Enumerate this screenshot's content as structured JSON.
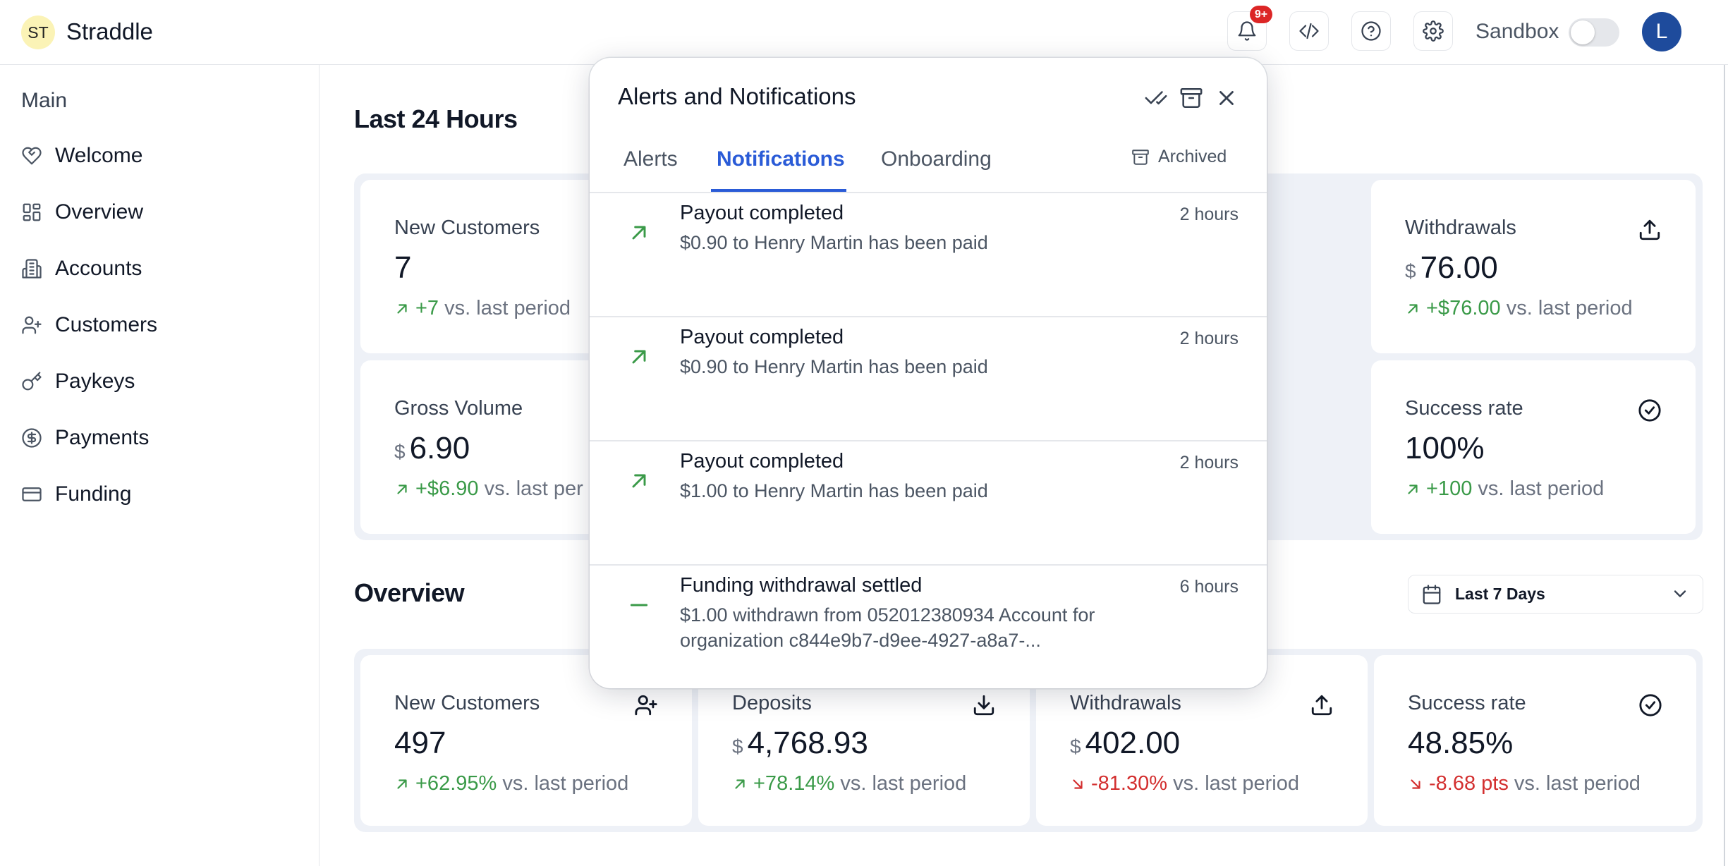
{
  "header": {
    "logo_initials": "ST",
    "brand": "Straddle",
    "notification_badge": "9+",
    "sandbox_label": "Sandbox",
    "sandbox_enabled": false,
    "avatar_initial": "L"
  },
  "sidebar": {
    "heading": "Main",
    "items": [
      {
        "label": "Welcome",
        "icon": "heart-icon"
      },
      {
        "label": "Overview",
        "icon": "dashboard-icon"
      },
      {
        "label": "Accounts",
        "icon": "building-icon"
      },
      {
        "label": "Customers",
        "icon": "user-plus-icon"
      },
      {
        "label": "Paykeys",
        "icon": "key-icon"
      },
      {
        "label": "Payments",
        "icon": "dollar-circle-icon"
      },
      {
        "label": "Funding",
        "icon": "credit-card-icon"
      }
    ]
  },
  "last24": {
    "title": "Last 24 Hours",
    "new_customers": {
      "label": "New Customers",
      "value": "7",
      "delta": "+7",
      "suffix": "vs. last period"
    },
    "withdrawals": {
      "label": "Withdrawals",
      "currency": "$",
      "value": "76.00",
      "delta": "+$76.00",
      "suffix": "vs. last period"
    },
    "gross_volume": {
      "label": "Gross Volume",
      "currency": "$",
      "value": "6.90",
      "delta": "+$6.90",
      "suffix": "vs. last per"
    },
    "success_rate": {
      "label": "Success rate",
      "value": "100%",
      "delta": "+100",
      "suffix": "vs. last period"
    }
  },
  "overview": {
    "title": "Overview",
    "date_range": "Last 7 Days",
    "new_customers": {
      "label": "New Customers",
      "value": "497",
      "delta": "+62.95%",
      "suffix": "vs. last period"
    },
    "deposits": {
      "label": "Deposits",
      "currency": "$",
      "value": "4,768.93",
      "delta": "+78.14%",
      "suffix": "vs. last period"
    },
    "withdrawals": {
      "label": "Withdrawals",
      "currency": "$",
      "value": "402.00",
      "delta": "-81.30%",
      "suffix": "vs. last period"
    },
    "success_rate": {
      "label": "Success rate",
      "value": "48.85%",
      "delta": "-8.68 pts",
      "suffix": "vs. last period"
    }
  },
  "popover": {
    "title": "Alerts and Notifications",
    "tabs": [
      "Alerts",
      "Notifications",
      "Onboarding"
    ],
    "active_tab": "Notifications",
    "archived_label": "Archived",
    "notifications": [
      {
        "title": "Payout completed",
        "body": "$0.90 to Henry Martin has been paid",
        "time": "2 hours",
        "icon": "arrow-up-right-icon"
      },
      {
        "title": "Payout completed",
        "body": "$0.90 to Henry Martin has been paid",
        "time": "2 hours",
        "icon": "arrow-up-right-icon"
      },
      {
        "title": "Payout completed",
        "body": "$1.00 to Henry Martin has been paid",
        "time": "2 hours",
        "icon": "arrow-up-right-icon"
      },
      {
        "title": "Funding withdrawal settled",
        "body": "$1.00 withdrawn from 052012380934 Account for organization c844e9b7-d9ee-4927-a8a7-...",
        "time": "6 hours",
        "icon": "minus-icon"
      }
    ]
  },
  "colors": {
    "accent": "#2a5bd7",
    "positive": "#3a9a48",
    "negative": "#d32f2f",
    "badge": "#dc2626",
    "avatar": "#1e4b9c",
    "panel": "#eef1f7"
  }
}
